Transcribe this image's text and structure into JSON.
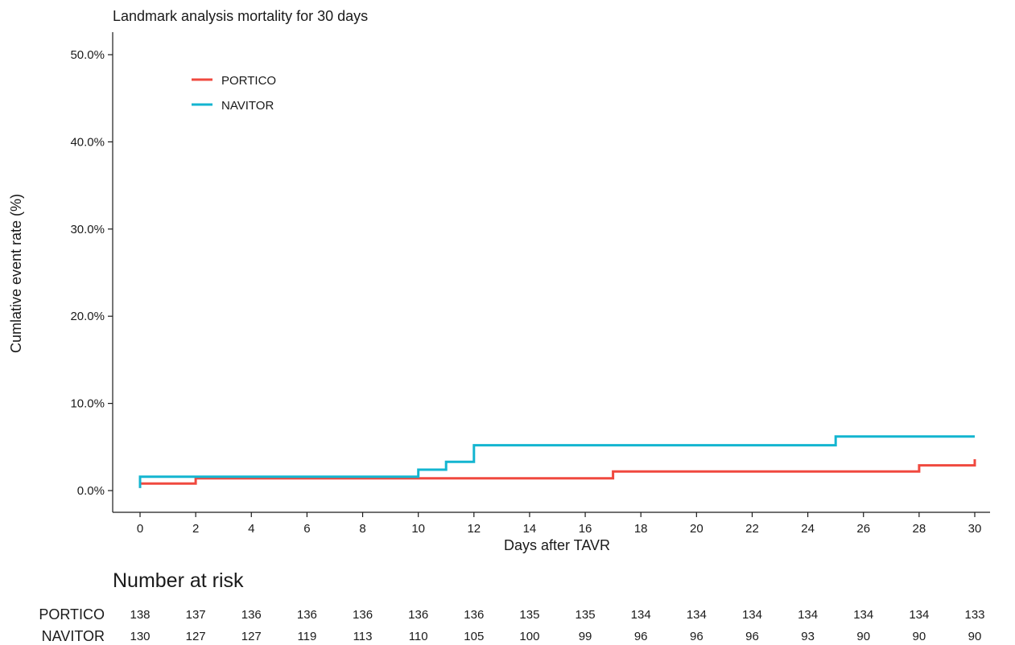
{
  "chart_data": {
    "type": "line",
    "subtype": "step",
    "title": "Landmark analysis mortality for 30 days",
    "xlabel": "Days after TAVR",
    "ylabel": "Cumlative event rate (%)",
    "xlim": [
      0,
      30
    ],
    "ylim": [
      0,
      50
    ],
    "x_ticks": [
      0,
      2,
      4,
      6,
      8,
      10,
      12,
      14,
      16,
      18,
      20,
      22,
      24,
      26,
      28,
      30
    ],
    "x_tick_labels": [
      "0",
      "2",
      "4",
      "6",
      "8",
      "10",
      "12",
      "14",
      "16",
      "18",
      "20",
      "22",
      "24",
      "26",
      "28",
      "30"
    ],
    "y_ticks": [
      0,
      10,
      20,
      30,
      40,
      50
    ],
    "y_tick_labels": [
      "0.0%",
      "10.0%",
      "20.0%",
      "30.0%",
      "40.0%",
      "50.0%"
    ],
    "grid": false,
    "legend_position": "top-left",
    "series": [
      {
        "name": "PORTICO",
        "color": "#f0493f",
        "steps": [
          {
            "x": 0,
            "y": 0.3
          },
          {
            "x": 0,
            "y": 0.8
          },
          {
            "x": 2,
            "y": 0.8
          },
          {
            "x": 2,
            "y": 1.4
          },
          {
            "x": 17,
            "y": 1.4
          },
          {
            "x": 17,
            "y": 2.2
          },
          {
            "x": 28,
            "y": 2.2
          },
          {
            "x": 28,
            "y": 2.9
          },
          {
            "x": 30,
            "y": 2.9
          },
          {
            "x": 30,
            "y": 3.6
          }
        ]
      },
      {
        "name": "NAVITOR",
        "color": "#13b5d0",
        "steps": [
          {
            "x": 0,
            "y": 0.3
          },
          {
            "x": 0,
            "y": 1.6
          },
          {
            "x": 10,
            "y": 1.6
          },
          {
            "x": 10,
            "y": 2.4
          },
          {
            "x": 11,
            "y": 2.4
          },
          {
            "x": 11,
            "y": 3.3
          },
          {
            "x": 12,
            "y": 3.3
          },
          {
            "x": 12,
            "y": 5.2
          },
          {
            "x": 25,
            "y": 5.2
          },
          {
            "x": 25,
            "y": 6.2
          },
          {
            "x": 30,
            "y": 6.2
          }
        ]
      }
    ]
  },
  "risk_table": {
    "title": "Number at risk",
    "x_ticks": [
      0,
      2,
      4,
      6,
      8,
      10,
      12,
      14,
      16,
      18,
      20,
      22,
      24,
      26,
      28,
      30
    ],
    "rows": [
      {
        "label": "PORTICO",
        "values": [
          138,
          137,
          136,
          136,
          136,
          136,
          136,
          135,
          135,
          134,
          134,
          134,
          134,
          134,
          134,
          133
        ]
      },
      {
        "label": "NAVITOR",
        "values": [
          130,
          127,
          127,
          119,
          113,
          110,
          105,
          100,
          99,
          96,
          96,
          96,
          93,
          90,
          90,
          90
        ]
      }
    ]
  }
}
